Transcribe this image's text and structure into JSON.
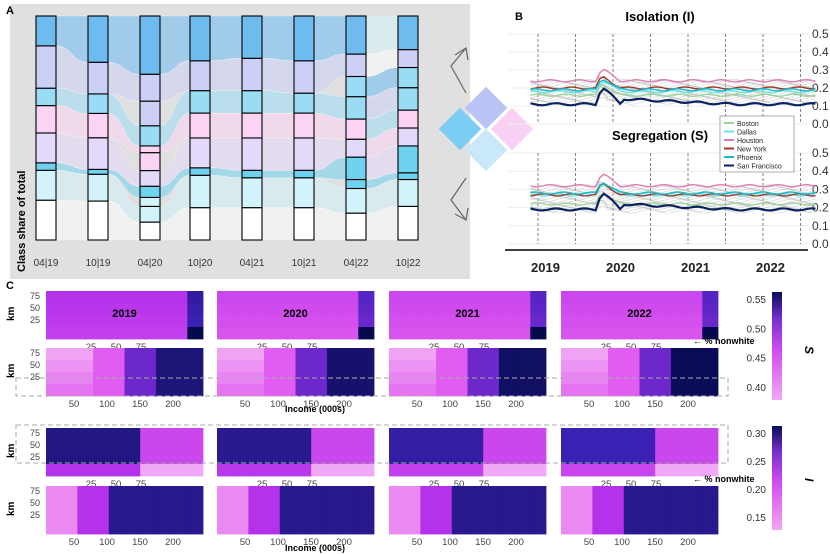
{
  "chart_data": [
    {
      "panel": "A",
      "type": "area",
      "subtype": "alluvial",
      "ylabel": "Class share of total",
      "categories": [
        "04|19",
        "10|19",
        "04|20",
        "10|20",
        "04|21",
        "10|21",
        "04|22",
        "10|22"
      ],
      "class_colors": [
        "#ffffff",
        "#d3f3fb",
        "#6fd2ee",
        "#e3d9fa",
        "#fbd3f3",
        "#9adcf4",
        "#ccd0f6",
        "#6ebbf0"
      ],
      "stacks": [
        [
          0.16,
          0.12,
          0.03,
          0.12,
          0.11,
          0.07,
          0.17,
          0.12
        ],
        [
          0.16,
          0.11,
          0.02,
          0.13,
          0.1,
          0.08,
          0.13,
          0.19
        ],
        [
          0.08,
          0.07,
          0.04,
          0.05,
          0.07,
          0.08,
          0.03,
          0.09,
          0.11,
          0.12,
          0.26
        ],
        [
          0.13,
          0.13,
          0.03,
          0.12,
          0.1,
          0.09,
          0.12,
          0.18
        ],
        [
          0.13,
          0.12,
          0.03,
          0.13,
          0.1,
          0.09,
          0.13,
          0.17
        ],
        [
          0.13,
          0.12,
          0.03,
          0.13,
          0.1,
          0.08,
          0.13,
          0.18
        ],
        [
          0.12,
          0.11,
          0.04,
          0.1,
          0.08,
          0.09,
          0.1,
          0.09,
          0.1,
          0.17
        ],
        [
          0.15,
          0.12,
          0.03,
          0.12,
          0.08,
          0.08,
          0.1,
          0.09,
          0.08,
          0.15
        ]
      ]
    },
    {
      "panel": "B",
      "type": "line",
      "titles": [
        "Isolation (I)",
        "Segregation (S)"
      ],
      "x_ticks": [
        "2019",
        "2020",
        "2021",
        "2022"
      ],
      "y_ticks": [
        "0.0",
        "0.1",
        "0.2",
        "0.3",
        "0.4",
        "0.5"
      ],
      "ylim": [
        0,
        0.5
      ],
      "legend_position": "right",
      "series": [
        {
          "name": "Boston",
          "color": "#9ed39a",
          "iso": 0.16,
          "seg": 0.22
        },
        {
          "name": "Dallas",
          "color": "#68e3e6",
          "iso": 0.18,
          "seg": 0.27
        },
        {
          "name": "Houston",
          "color": "#e07ab0",
          "iso": 0.24,
          "seg": 0.32
        },
        {
          "name": "New York",
          "color": "#9e3a2b",
          "iso": 0.2,
          "seg": 0.27
        },
        {
          "name": "Phoenix",
          "color": "#16b9c9",
          "iso": 0.19,
          "seg": 0.28
        },
        {
          "name": "San Francisco",
          "color": "#0b2260",
          "iso": 0.11,
          "seg": 0.19
        }
      ]
    },
    {
      "panel": "C",
      "type": "heatmap",
      "years": [
        "2019",
        "2020",
        "2021",
        "2022"
      ],
      "ylabel": "km",
      "y_ticks": [
        "75",
        "50",
        "25"
      ],
      "pct_nonwhite_ticks": [
        "25",
        "50",
        "75"
      ],
      "income_ticks": [
        "50",
        "100",
        "150",
        "200"
      ],
      "pct_nonwhite_label": "← % nonwhite",
      "income_label": "Income (000s)",
      "legend_S": {
        "label": "S",
        "ticks": [
          "0.55",
          "0.50",
          "0.45",
          "0.40"
        ]
      },
      "legend_I": {
        "label": "I",
        "ticks": [
          "0.30",
          "0.25",
          "0.20",
          "0.15"
        ]
      }
    }
  ],
  "labels": {
    "panel_a": "A",
    "panel_b": "B",
    "panel_c": "C"
  }
}
